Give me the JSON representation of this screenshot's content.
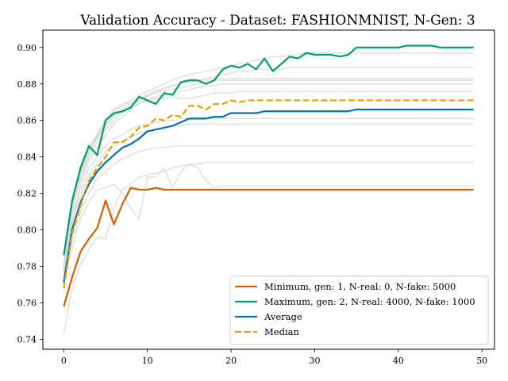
{
  "chart_data": {
    "type": "line",
    "title": "Validation Accuracy - Dataset: FASHIONMNIST, N-Gen: 3",
    "xlabel": "",
    "ylabel": "",
    "xlim": [
      -2.5,
      51.5
    ],
    "ylim": [
      0.7345,
      0.9095
    ],
    "x_ticks": [
      0,
      10,
      20,
      30,
      40,
      50
    ],
    "x_tick_labels": [
      "0",
      "10",
      "20",
      "30",
      "40",
      "50"
    ],
    "y_ticks": [
      0.74,
      0.76,
      0.78,
      0.8,
      0.82,
      0.84,
      0.86,
      0.88,
      0.9
    ],
    "y_tick_labels": [
      "0.74",
      "0.76",
      "0.78",
      "0.80",
      "0.82",
      "0.84",
      "0.86",
      "0.88",
      "0.90"
    ],
    "grid": false,
    "legend_position": "bottom-right",
    "background_runs": [
      [
        0.743,
        0.768,
        0.781,
        0.789,
        0.796,
        0.795,
        0.812,
        0.822,
        0.825,
        0.829,
        0.83,
        0.831,
        0.832,
        0.834,
        0.835,
        0.836,
        0.836,
        0.837,
        0.837,
        0.837,
        0.837,
        0.837,
        0.837,
        0.837,
        0.837,
        0.837,
        0.837,
        0.837,
        0.837,
        0.837,
        0.837,
        0.837,
        0.837,
        0.837,
        0.837,
        0.837,
        0.837,
        0.837,
        0.837,
        0.837,
        0.837,
        0.837,
        0.837,
        0.837,
        0.837,
        0.837,
        0.837,
        0.837,
        0.837,
        0.837
      ],
      [
        0.771,
        0.79,
        0.806,
        0.815,
        0.822,
        0.823,
        0.825,
        0.82,
        0.812,
        0.806,
        0.829,
        0.829,
        0.834,
        0.823,
        0.832,
        0.836,
        0.834,
        0.827,
        0.823,
        0.824,
        0.824,
        0.824,
        0.824,
        0.824,
        0.824,
        0.824,
        0.824,
        0.824,
        0.824,
        0.824,
        0.824,
        0.824,
        0.824,
        0.824,
        0.824,
        0.824,
        0.824,
        0.824,
        0.824,
        0.824,
        0.824,
        0.824,
        0.824,
        0.824,
        0.824,
        0.824,
        0.824,
        0.824,
        0.824,
        0.824
      ],
      [
        0.772,
        0.795,
        0.81,
        0.82,
        0.828,
        0.832,
        0.836,
        0.839,
        0.841,
        0.843,
        0.844,
        0.845,
        0.845,
        0.846,
        0.846,
        0.846,
        0.846,
        0.846,
        0.846,
        0.846,
        0.846,
        0.846,
        0.846,
        0.846,
        0.846,
        0.846,
        0.846,
        0.846,
        0.846,
        0.846,
        0.846,
        0.846,
        0.846,
        0.846,
        0.846,
        0.846,
        0.846,
        0.846,
        0.846,
        0.846,
        0.846,
        0.846,
        0.846,
        0.846,
        0.846,
        0.846,
        0.846,
        0.846,
        0.846,
        0.846
      ],
      [
        0.775,
        0.805,
        0.818,
        0.83,
        0.836,
        0.843,
        0.846,
        0.849,
        0.851,
        0.853,
        0.854,
        0.855,
        0.856,
        0.857,
        0.857,
        0.858,
        0.858,
        0.858,
        0.858,
        0.858,
        0.858,
        0.858,
        0.858,
        0.858,
        0.858,
        0.858,
        0.858,
        0.858,
        0.858,
        0.858,
        0.858,
        0.858,
        0.858,
        0.858,
        0.858,
        0.858,
        0.858,
        0.858,
        0.858,
        0.858,
        0.858,
        0.858,
        0.858,
        0.858,
        0.858,
        0.858,
        0.858,
        0.858,
        0.858,
        0.858
      ],
      [
        0.778,
        0.808,
        0.822,
        0.834,
        0.84,
        0.846,
        0.85,
        0.852,
        0.855,
        0.857,
        0.858,
        0.859,
        0.86,
        0.86,
        0.861,
        0.861,
        0.861,
        0.861,
        0.861,
        0.861,
        0.861,
        0.861,
        0.861,
        0.861,
        0.861,
        0.861,
        0.861,
        0.861,
        0.861,
        0.861,
        0.861,
        0.861,
        0.861,
        0.861,
        0.861,
        0.861,
        0.861,
        0.861,
        0.861,
        0.861,
        0.861,
        0.861,
        0.861,
        0.861,
        0.861,
        0.861,
        0.861,
        0.861,
        0.861,
        0.861
      ],
      [
        0.77,
        0.802,
        0.825,
        0.838,
        0.845,
        0.852,
        0.858,
        0.862,
        0.866,
        0.87,
        0.871,
        0.872,
        0.872,
        0.873,
        0.872,
        0.872,
        0.873,
        0.874,
        0.875,
        0.875,
        0.875,
        0.876,
        0.876,
        0.876,
        0.876,
        0.876,
        0.876,
        0.876,
        0.876,
        0.876,
        0.876,
        0.876,
        0.876,
        0.876,
        0.876,
        0.876,
        0.876,
        0.876,
        0.876,
        0.876,
        0.876,
        0.876,
        0.876,
        0.876,
        0.876,
        0.876,
        0.876,
        0.876,
        0.876,
        0.876
      ],
      [
        0.776,
        0.812,
        0.828,
        0.84,
        0.848,
        0.855,
        0.86,
        0.864,
        0.867,
        0.869,
        0.871,
        0.873,
        0.874,
        0.875,
        0.876,
        0.877,
        0.878,
        0.879,
        0.879,
        0.88,
        0.88,
        0.88,
        0.88,
        0.88,
        0.88,
        0.88,
        0.88,
        0.88,
        0.88,
        0.88,
        0.88,
        0.88,
        0.88,
        0.88,
        0.88,
        0.88,
        0.88,
        0.88,
        0.88,
        0.88,
        0.88,
        0.88,
        0.88,
        0.88,
        0.88,
        0.88,
        0.88,
        0.88,
        0.88,
        0.88
      ],
      [
        0.779,
        0.815,
        0.832,
        0.843,
        0.851,
        0.858,
        0.863,
        0.866,
        0.869,
        0.871,
        0.873,
        0.875,
        0.876,
        0.877,
        0.878,
        0.879,
        0.88,
        0.881,
        0.882,
        0.882,
        0.882,
        0.882,
        0.882,
        0.882,
        0.882,
        0.882,
        0.882,
        0.882,
        0.882,
        0.882,
        0.882,
        0.882,
        0.882,
        0.882,
        0.882,
        0.882,
        0.882,
        0.882,
        0.882,
        0.882,
        0.882,
        0.882,
        0.882,
        0.882,
        0.882,
        0.882,
        0.882,
        0.882,
        0.882,
        0.882
      ],
      [
        0.774,
        0.81,
        0.83,
        0.842,
        0.85,
        0.857,
        0.862,
        0.865,
        0.868,
        0.871,
        0.874,
        0.876,
        0.877,
        0.879,
        0.88,
        0.881,
        0.882,
        0.882,
        0.883,
        0.883,
        0.883,
        0.883,
        0.883,
        0.883,
        0.883,
        0.883,
        0.883,
        0.883,
        0.883,
        0.883,
        0.883,
        0.883,
        0.883,
        0.883,
        0.883,
        0.883,
        0.883,
        0.883,
        0.883,
        0.883,
        0.883,
        0.883,
        0.883,
        0.883,
        0.883,
        0.883,
        0.883,
        0.883,
        0.883,
        0.883
      ],
      [
        0.777,
        0.813,
        0.831,
        0.844,
        0.852,
        0.86,
        0.865,
        0.868,
        0.87,
        0.872,
        0.874,
        0.876,
        0.878,
        0.879,
        0.88,
        0.881,
        0.882,
        0.883,
        0.884,
        0.885,
        0.886,
        0.887,
        0.887,
        0.888,
        0.888,
        0.888,
        0.888,
        0.889,
        0.889,
        0.889,
        0.889,
        0.889,
        0.889,
        0.889,
        0.889,
        0.889,
        0.889,
        0.889,
        0.889,
        0.889,
        0.889,
        0.889,
        0.889,
        0.889,
        0.889,
        0.889,
        0.889,
        0.889,
        0.889,
        0.889
      ],
      [
        0.78,
        0.814,
        0.833,
        0.845,
        0.853,
        0.861,
        0.866,
        0.869,
        0.871,
        0.874,
        0.876,
        0.878,
        0.88,
        0.882,
        0.884,
        0.885,
        0.886,
        0.887,
        0.888,
        0.889,
        0.89,
        0.891,
        0.892,
        0.893,
        0.894,
        0.895,
        0.895,
        0.896,
        0.896,
        0.897,
        0.897,
        0.897,
        0.897,
        0.897,
        0.897,
        0.897,
        0.897,
        0.897,
        0.897,
        0.897,
        0.897,
        0.897,
        0.897,
        0.897,
        0.897,
        0.897,
        0.897,
        0.897,
        0.897,
        0.897
      ]
    ],
    "x": [
      0,
      1,
      2,
      3,
      4,
      5,
      6,
      7,
      8,
      9,
      10,
      11,
      12,
      13,
      14,
      15,
      16,
      17,
      18,
      19,
      20,
      21,
      22,
      23,
      24,
      25,
      26,
      27,
      28,
      29,
      30,
      31,
      32,
      33,
      34,
      35,
      36,
      37,
      38,
      39,
      40,
      41,
      42,
      43,
      44,
      45,
      46,
      47,
      48,
      49
    ],
    "series": [
      {
        "name": "Minimum, gen: 1, N-real: 0, N-fake: 5000",
        "color": "#d55e00",
        "dash": "solid",
        "values": [
          0.758,
          0.774,
          0.788,
          0.795,
          0.801,
          0.816,
          0.803,
          0.814,
          0.823,
          0.822,
          0.822,
          0.823,
          0.822,
          0.822,
          0.822,
          0.822,
          0.822,
          0.822,
          0.822,
          0.822,
          0.822,
          0.822,
          0.822,
          0.822,
          0.822,
          0.822,
          0.822,
          0.822,
          0.822,
          0.822,
          0.822,
          0.822,
          0.822,
          0.822,
          0.822,
          0.822,
          0.822,
          0.822,
          0.822,
          0.822,
          0.822,
          0.822,
          0.822,
          0.822,
          0.822,
          0.822,
          0.822,
          0.822,
          0.822,
          0.822
        ]
      },
      {
        "name": "Maximum, gen: 2, N-real: 4000, N-fake: 1000",
        "color": "#009e73",
        "dash": "solid",
        "values": [
          0.786,
          0.816,
          0.834,
          0.846,
          0.841,
          0.86,
          0.864,
          0.865,
          0.867,
          0.873,
          0.871,
          0.869,
          0.875,
          0.874,
          0.881,
          0.882,
          0.882,
          0.88,
          0.882,
          0.888,
          0.89,
          0.889,
          0.891,
          0.888,
          0.894,
          0.887,
          0.891,
          0.895,
          0.894,
          0.897,
          0.896,
          0.896,
          0.896,
          0.895,
          0.896,
          0.9,
          0.9,
          0.9,
          0.9,
          0.9,
          0.9,
          0.901,
          0.901,
          0.901,
          0.901,
          0.9,
          0.9,
          0.9,
          0.9,
          0.9
        ]
      },
      {
        "name": "Average",
        "color": "#0072b2",
        "dash": "solid",
        "values": [
          0.771,
          0.8,
          0.815,
          0.825,
          0.832,
          0.837,
          0.841,
          0.845,
          0.847,
          0.85,
          0.854,
          0.855,
          0.856,
          0.857,
          0.859,
          0.861,
          0.861,
          0.861,
          0.862,
          0.862,
          0.864,
          0.864,
          0.864,
          0.864,
          0.865,
          0.865,
          0.865,
          0.865,
          0.865,
          0.865,
          0.865,
          0.865,
          0.865,
          0.865,
          0.865,
          0.866,
          0.866,
          0.866,
          0.866,
          0.866,
          0.866,
          0.866,
          0.866,
          0.866,
          0.866,
          0.866,
          0.866,
          0.866,
          0.866,
          0.866
        ]
      },
      {
        "name": "Median",
        "color": "#e69f00",
        "dash": "dashed",
        "values": [
          0.768,
          0.798,
          0.813,
          0.827,
          0.834,
          0.84,
          0.848,
          0.848,
          0.851,
          0.856,
          0.857,
          0.861,
          0.86,
          0.863,
          0.862,
          0.868,
          0.868,
          0.866,
          0.869,
          0.869,
          0.871,
          0.87,
          0.871,
          0.871,
          0.871,
          0.871,
          0.871,
          0.871,
          0.871,
          0.871,
          0.871,
          0.871,
          0.871,
          0.871,
          0.871,
          0.871,
          0.871,
          0.871,
          0.871,
          0.871,
          0.871,
          0.871,
          0.871,
          0.871,
          0.871,
          0.871,
          0.871,
          0.871,
          0.871,
          0.871
        ]
      }
    ],
    "background_color": "#d3d3d3"
  }
}
